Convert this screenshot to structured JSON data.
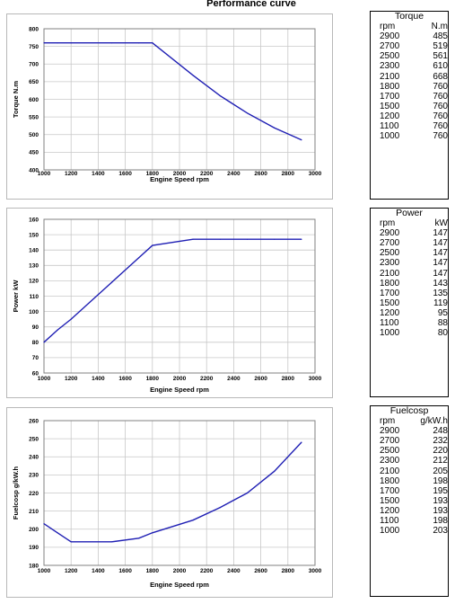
{
  "page_title": "Performance curve",
  "chart_data": [
    {
      "type": "line",
      "xlabel": "Engine Speed rpm",
      "ylabel": "Torque N.m",
      "xlim": [
        1000,
        3000
      ],
      "ylim": [
        400,
        800
      ],
      "xticks": [
        1000,
        1200,
        1400,
        1600,
        1800,
        2000,
        2200,
        2400,
        2600,
        2800,
        3000
      ],
      "yticks": [
        400,
        450,
        500,
        550,
        600,
        650,
        700,
        750,
        800
      ],
      "grid": true,
      "color": "#1f1fb4",
      "x": [
        1000,
        1100,
        1200,
        1500,
        1700,
        1800,
        2100,
        2300,
        2500,
        2700,
        2900
      ],
      "y": [
        760,
        760,
        760,
        760,
        760,
        760,
        668,
        610,
        561,
        519,
        485
      ]
    },
    {
      "type": "line",
      "xlabel": "Engine Speed rpm",
      "ylabel": "Power kW",
      "xlim": [
        1000,
        3000
      ],
      "ylim": [
        60,
        160
      ],
      "xticks": [
        1000,
        1200,
        1400,
        1600,
        1800,
        2000,
        2200,
        2400,
        2600,
        2800,
        3000
      ],
      "yticks": [
        60,
        70,
        80,
        90,
        100,
        110,
        120,
        130,
        140,
        150,
        160
      ],
      "grid": true,
      "color": "#1f1fb4",
      "x": [
        1000,
        1100,
        1200,
        1500,
        1700,
        1800,
        2100,
        2300,
        2500,
        2700,
        2900
      ],
      "y": [
        80,
        88,
        95,
        119,
        135,
        143,
        147,
        147,
        147,
        147,
        147
      ]
    },
    {
      "type": "line",
      "xlabel": "Engine Speed rpm",
      "ylabel": "Fuelcosp g/kW.h",
      "xlim": [
        1000,
        3000
      ],
      "ylim": [
        180,
        260
      ],
      "xticks": [
        1000,
        1200,
        1400,
        1600,
        1800,
        2000,
        2200,
        2400,
        2600,
        2800,
        3000
      ],
      "yticks": [
        180,
        190,
        200,
        210,
        220,
        230,
        240,
        250,
        260
      ],
      "grid": true,
      "color": "#1f1fb4",
      "x": [
        1000,
        1100,
        1200,
        1500,
        1700,
        1800,
        2100,
        2300,
        2500,
        2700,
        2900
      ],
      "y": [
        203,
        198,
        193,
        193,
        195,
        198,
        205,
        212,
        220,
        232,
        248
      ]
    }
  ],
  "tables": [
    {
      "title": "Torque",
      "col1": "rpm",
      "col2": "N.m",
      "rows": [
        [
          "2900",
          "485"
        ],
        [
          "2700",
          "519"
        ],
        [
          "2500",
          "561"
        ],
        [
          "2300",
          "610"
        ],
        [
          "2100",
          "668"
        ],
        [
          "1800",
          "760"
        ],
        [
          "1700",
          "760"
        ],
        [
          "1500",
          "760"
        ],
        [
          "1200",
          "760"
        ],
        [
          "1100",
          "760"
        ],
        [
          "1000",
          "760"
        ]
      ]
    },
    {
      "title": "Power",
      "col1": "rpm",
      "col2": "kW",
      "rows": [
        [
          "2900",
          "147"
        ],
        [
          "2700",
          "147"
        ],
        [
          "2500",
          "147"
        ],
        [
          "2300",
          "147"
        ],
        [
          "2100",
          "147"
        ],
        [
          "1800",
          "143"
        ],
        [
          "1700",
          "135"
        ],
        [
          "1500",
          "119"
        ],
        [
          "1200",
          "95"
        ],
        [
          "1100",
          "88"
        ],
        [
          "1000",
          "80"
        ]
      ]
    },
    {
      "title": "Fuelcosp",
      "col1": "rpm",
      "col2": "g/kW.h",
      "rows": [
        [
          "2900",
          "248"
        ],
        [
          "2700",
          "232"
        ],
        [
          "2500",
          "220"
        ],
        [
          "2300",
          "212"
        ],
        [
          "2100",
          "205"
        ],
        [
          "1800",
          "198"
        ],
        [
          "1700",
          "195"
        ],
        [
          "1500",
          "193"
        ],
        [
          "1200",
          "193"
        ],
        [
          "1100",
          "198"
        ],
        [
          "1000",
          "203"
        ]
      ]
    }
  ]
}
